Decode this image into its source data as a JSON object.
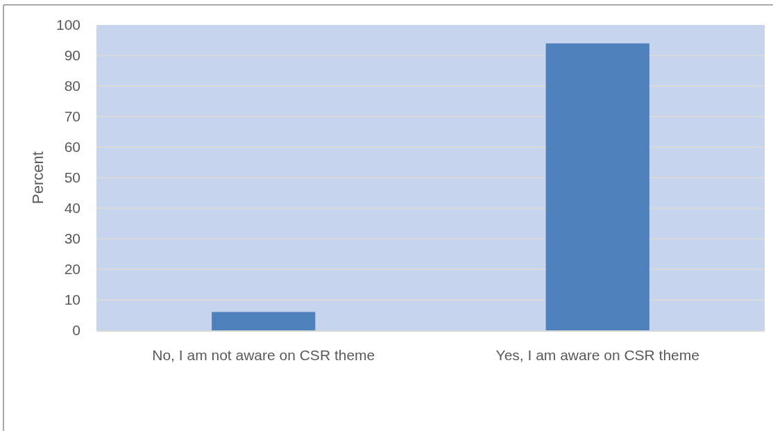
{
  "chart_data": {
    "type": "bar",
    "ylabel": "Percent",
    "categories": [
      "No, I am not aware on CSR theme",
      "Yes, I am aware on CSR theme"
    ],
    "values": [
      6,
      94
    ],
    "color": "#4f81bd",
    "ylim": [
      0,
      100
    ],
    "yticks": [
      0,
      10,
      20,
      30,
      40,
      50,
      60,
      70,
      80,
      90,
      100
    ],
    "grid": "y"
  }
}
